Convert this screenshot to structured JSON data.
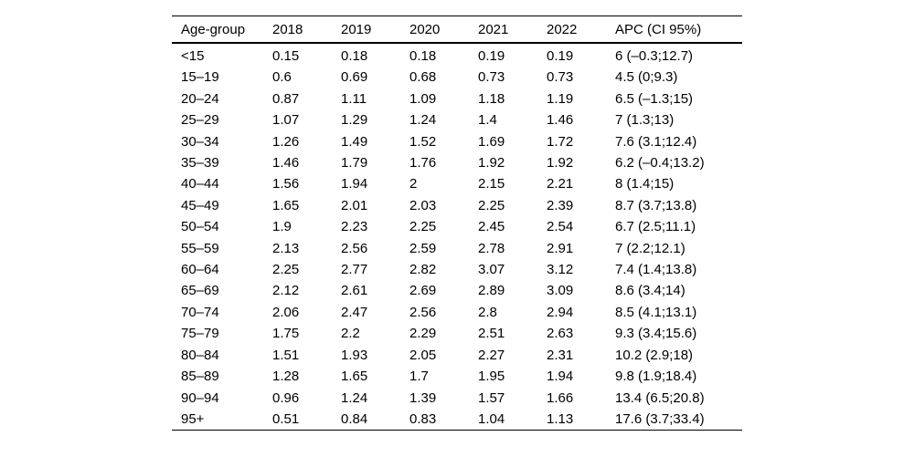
{
  "table": {
    "columns": [
      "Age-group",
      "2018",
      "2019",
      "2020",
      "2021",
      "2022",
      "APC (CI 95%)"
    ],
    "rows": [
      [
        "<15",
        "0.15",
        "0.18",
        "0.18",
        "0.19",
        "0.19",
        "6 (–0.3;12.7)"
      ],
      [
        "15–19",
        "0.6",
        "0.69",
        "0.68",
        "0.73",
        "0.73",
        "4.5 (0;9.3)"
      ],
      [
        "20–24",
        "0.87",
        "1.11",
        "1.09",
        "1.18",
        "1.19",
        "6.5 (–1.3;15)"
      ],
      [
        "25–29",
        "1.07",
        "1.29",
        "1.24",
        "1.4",
        "1.46",
        "7 (1.3;13)"
      ],
      [
        "30–34",
        "1.26",
        "1.49",
        "1.52",
        "1.69",
        "1.72",
        "7.6 (3.1;12.4)"
      ],
      [
        "35–39",
        "1.46",
        "1.79",
        "1.76",
        "1.92",
        "1.92",
        "6.2 (–0.4;13.2)"
      ],
      [
        "40–44",
        "1.56",
        "1.94",
        "2",
        "2.15",
        "2.21",
        "8 (1.4;15)"
      ],
      [
        "45–49",
        "1.65",
        "2.01",
        "2.03",
        "2.25",
        "2.39",
        "8.7 (3.7;13.8)"
      ],
      [
        "50–54",
        "1.9",
        "2.23",
        "2.25",
        "2.45",
        "2.54",
        "6.7 (2.5;11.1)"
      ],
      [
        "55–59",
        "2.13",
        "2.56",
        "2.59",
        "2.78",
        "2.91",
        "7 (2.2;12.1)"
      ],
      [
        "60–64",
        "2.25",
        "2.77",
        "2.82",
        "3.07",
        "3.12",
        "7.4 (1.4;13.8)"
      ],
      [
        "65–69",
        "2.12",
        "2.61",
        "2.69",
        "2.89",
        "3.09",
        "8.6 (3.4;14)"
      ],
      [
        "70–74",
        "2.06",
        "2.47",
        "2.56",
        "2.8",
        "2.94",
        "8.5 (4.1;13.1)"
      ],
      [
        "75–79",
        "1.75",
        "2.2",
        "2.29",
        "2.51",
        "2.63",
        "9.3 (3.4;15.6)"
      ],
      [
        "80–84",
        "1.51",
        "1.93",
        "2.05",
        "2.27",
        "2.31",
        "10.2 (2.9;18)"
      ],
      [
        "85–89",
        "1.28",
        "1.65",
        "1.7",
        "1.95",
        "1.94",
        "9.8 (1.9;18.4)"
      ],
      [
        "90–94",
        "0.96",
        "1.24",
        "1.39",
        "1.57",
        "1.66",
        "13.4 (6.5;20.8)"
      ],
      [
        "95+",
        "0.51",
        "0.84",
        "0.83",
        "1.04",
        "1.13",
        "17.6 (3.7;33.4)"
      ]
    ]
  }
}
